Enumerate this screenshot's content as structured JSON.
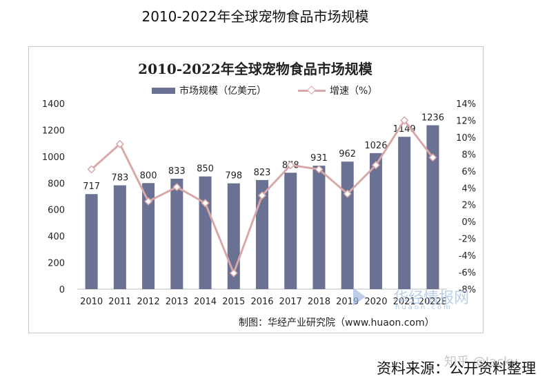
{
  "page_title": "2010-2022年全球宠物食品市场规模",
  "chart_data": {
    "type": "bar",
    "title": "2010-2022年全球宠物食品市场规模",
    "categories": [
      "2010",
      "2011",
      "2012",
      "2013",
      "2014",
      "2015",
      "2016",
      "2017",
      "2018",
      "2019",
      "2020",
      "2021",
      "2022E"
    ],
    "series": [
      {
        "name": "市场规模（亿美元）",
        "type": "bar",
        "axis": "left",
        "values": [
          717,
          783,
          800,
          833,
          850,
          798,
          823,
          878,
          931,
          962,
          1026,
          1149,
          1236
        ]
      },
      {
        "name": "增速（%）",
        "type": "line",
        "axis": "right",
        "values": [
          6.2,
          9.2,
          2.4,
          4.1,
          2.2,
          -6.1,
          3.1,
          6.7,
          6.2,
          3.3,
          6.7,
          12.0,
          7.6
        ]
      }
    ],
    "left_axis": {
      "min": 0,
      "max": 1400,
      "ticks": [
        "0",
        "200",
        "400",
        "600",
        "800",
        "1000",
        "1200",
        "1400"
      ]
    },
    "right_axis": {
      "min": -8,
      "max": 14,
      "ticks": [
        "-8%",
        "-6%",
        "-4%",
        "-2%",
        "0%",
        "2%",
        "4%",
        "6%",
        "8%",
        "10%",
        "12%",
        "14%"
      ]
    },
    "legend_position": "top",
    "colors": {
      "bar": "#6a7192",
      "line": "#d8a8a8"
    }
  },
  "legend": {
    "bar_label": "市场规模（亿美元）",
    "line_label": "增速（%）"
  },
  "source_note": "制图：华经产业研究院（www.huaon.com）",
  "watermark": {
    "text": "华经情报网",
    "sub": "huaon.com"
  },
  "zhihu_mark": "知乎 @Jacky",
  "footer_source": "资料来源：公开资料整理"
}
